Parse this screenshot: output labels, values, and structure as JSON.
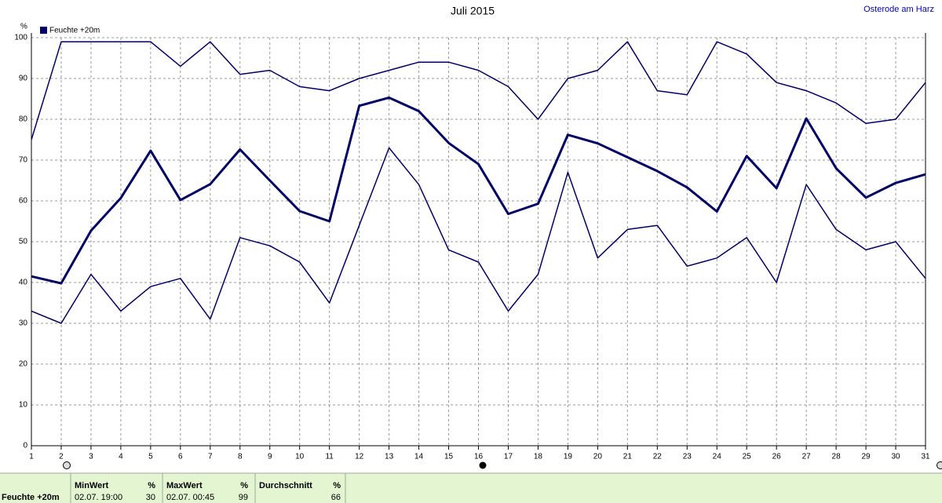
{
  "chart_data": {
    "type": "line",
    "title": "Juli 2015",
    "location": "Osterode am Harz",
    "y_label": "%",
    "legend": "Feuchte +20m",
    "x": [
      1,
      2,
      3,
      4,
      5,
      6,
      7,
      8,
      9,
      10,
      11,
      12,
      13,
      14,
      15,
      16,
      17,
      18,
      19,
      20,
      21,
      22,
      23,
      24,
      25,
      26,
      27,
      28,
      29,
      30,
      31
    ],
    "xlim": [
      1,
      31
    ],
    "xticks": [
      1,
      2,
      3,
      4,
      5,
      6,
      7,
      8,
      9,
      10,
      11,
      12,
      13,
      14,
      15,
      16,
      17,
      18,
      19,
      20,
      21,
      22,
      23,
      24,
      25,
      26,
      27,
      28,
      29,
      30,
      31
    ],
    "ylim": [
      0,
      100
    ],
    "yticks": [
      0,
      10,
      20,
      30,
      40,
      50,
      60,
      70,
      80,
      90,
      100
    ],
    "grid": true,
    "series": [
      {
        "color": "#000066",
        "width": 1.5,
        "values": [
          75,
          99,
          99,
          99,
          99,
          93,
          99,
          91,
          92,
          88,
          87,
          90,
          92,
          94,
          94,
          92,
          88,
          80,
          90,
          92,
          99,
          87,
          86,
          99,
          96,
          89,
          87,
          84,
          79,
          80,
          89
        ]
      },
      {
        "color": "#000066",
        "width": 3,
        "values": [
          41.5,
          39.8,
          52.7,
          60.7,
          72.3,
          60.2,
          64.1,
          72.6,
          65,
          57.5,
          55,
          83.3,
          85.3,
          82,
          74.2,
          69,
          56.8,
          59.3,
          76.2,
          74.1,
          70.7,
          67.3,
          63.3,
          57.4,
          71,
          63.1,
          80.2,
          68,
          60.8,
          64.4,
          66.5
        ]
      },
      {
        "color": "#000066",
        "width": 1.5,
        "values": [
          33,
          30,
          42,
          33,
          39,
          41,
          31,
          51,
          49,
          45,
          35,
          54,
          73,
          64,
          48,
          45,
          33,
          42,
          67,
          46,
          53,
          54,
          44,
          46,
          51,
          40,
          64,
          53,
          48,
          50,
          41
        ]
      }
    ]
  },
  "summary": {
    "label": "Feuchte +20m",
    "min": {
      "title": "MinWert",
      "unit": "%",
      "time": "02.07. 19:00",
      "value": "30"
    },
    "max": {
      "title": "MaxWert",
      "unit": "%",
      "time": "02.07. 00:45",
      "value": "99"
    },
    "avg": {
      "title": "Durchschnitt",
      "unit": "%",
      "value": "66"
    }
  }
}
